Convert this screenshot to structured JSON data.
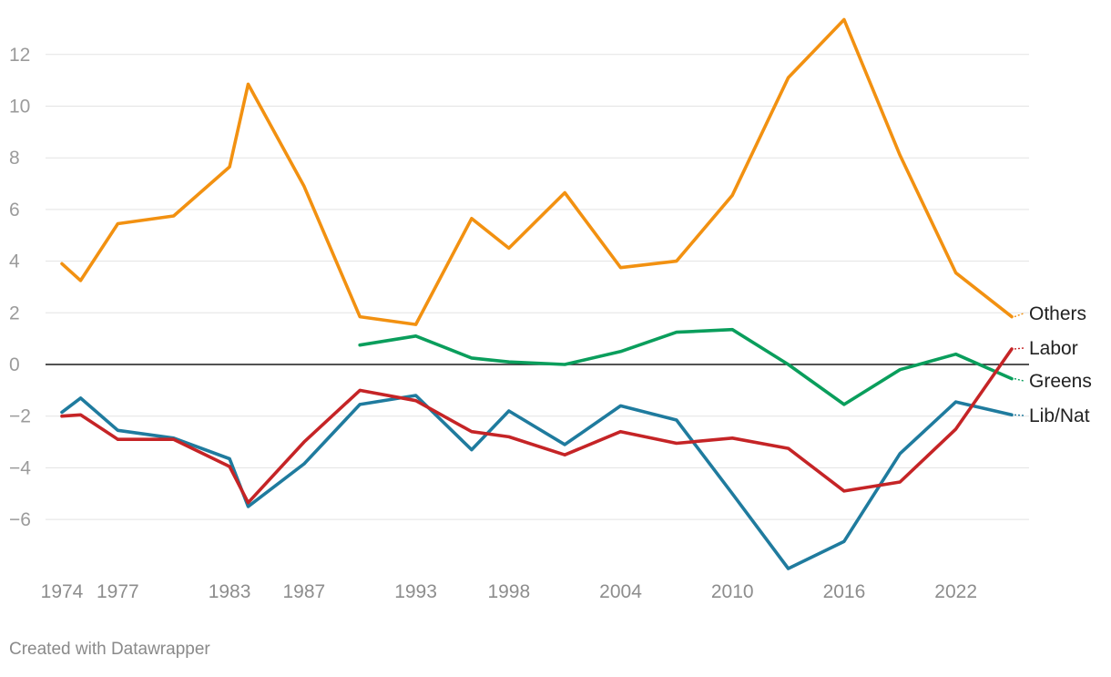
{
  "chart_data": {
    "type": "line",
    "title": "",
    "xlabel": "",
    "ylabel": "",
    "x": [
      1974,
      1975,
      1977,
      1980,
      1983,
      1984,
      1987,
      1990,
      1993,
      1996,
      1998,
      2001,
      2004,
      2007,
      2010,
      2013,
      2016,
      2019,
      2022,
      2025
    ],
    "x_tick_labels": [
      "1974",
      "1977",
      "1983",
      "1987",
      "1993",
      "1998",
      "2004",
      "2010",
      "2016",
      "2022"
    ],
    "y_tick_labels": [
      "12",
      "10",
      "8",
      "6",
      "4",
      "2",
      "0",
      "−2",
      "−4",
      "−6"
    ],
    "y_ticks": [
      12,
      10,
      8,
      6,
      4,
      2,
      0,
      -2,
      -4,
      -6
    ],
    "ylim": [
      -8,
      13.5
    ],
    "grid": true,
    "zero_line": true,
    "series": [
      {
        "name": "Others",
        "color": "#f29111",
        "values": [
          3.9,
          3.25,
          5.45,
          5.75,
          7.65,
          10.85,
          6.9,
          1.85,
          1.55,
          5.65,
          4.5,
          6.65,
          3.75,
          4.0,
          6.55,
          11.1,
          13.35,
          8.1,
          3.55,
          1.85
        ]
      },
      {
        "name": "Labor",
        "color": "#c52426",
        "values": [
          -2.0,
          -1.95,
          -2.9,
          -2.9,
          -3.95,
          -5.35,
          -3.0,
          -1.0,
          -1.4,
          -2.6,
          -2.8,
          -3.5,
          -2.6,
          -3.05,
          -2.85,
          -3.25,
          -4.9,
          -4.55,
          -2.5,
          0.6
        ]
      },
      {
        "name": "Greens",
        "color": "#0a9e5c",
        "values": [
          null,
          null,
          null,
          null,
          null,
          null,
          null,
          0.75,
          1.1,
          0.25,
          0.1,
          0.0,
          0.5,
          1.25,
          1.35,
          0.0,
          -1.55,
          -0.2,
          0.4,
          -0.55
        ]
      },
      {
        "name": "Lib/Nat",
        "color": "#1f7b9e",
        "values": [
          -1.85,
          -1.3,
          -2.55,
          -2.85,
          -3.65,
          -5.5,
          -3.85,
          -1.55,
          -1.2,
          -3.3,
          -1.8,
          -3.1,
          -1.6,
          -2.15,
          -5.0,
          -7.9,
          -6.85,
          -3.45,
          -1.45,
          -1.95
        ]
      }
    ],
    "end_labels": [
      "Others",
      "Labor",
      "Greens",
      "Lib/Nat"
    ]
  },
  "footer": {
    "credit": "Created with Datawrapper"
  }
}
